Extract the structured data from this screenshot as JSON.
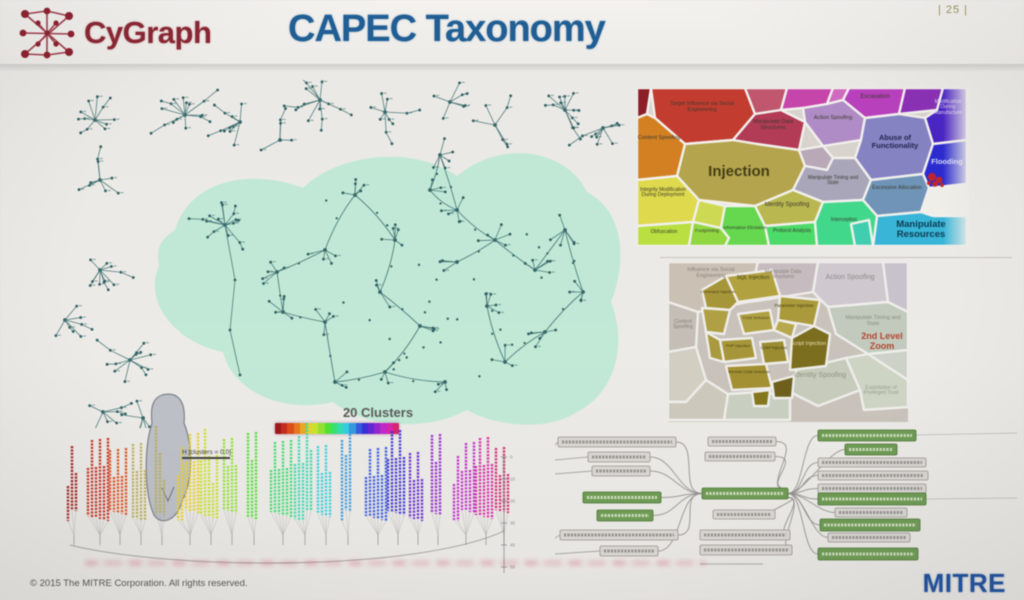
{
  "slide": {
    "page_number": "| 25 |",
    "logo_text": "CyGraph",
    "title": "CAPEC Taxonomy",
    "footer_copyright": "© 2015 The MITRE Corporation. All rights reserved.",
    "brand_logo": "MITRE",
    "colors": {
      "logo_red": "#8c2432",
      "title_blue": "#1e5e96",
      "brand_blue": "#1d4f9e",
      "background": "#eceae6"
    }
  },
  "network_graph": {
    "description": "CAPEC attack pattern relationship graph with highlighted giant component",
    "highlight_color": "#b9e8d2",
    "edge_color": "#3f7172",
    "node_color": "#2f5f61"
  },
  "treemap_level1": {
    "description": "CAPEC taxonomy Voronoi treemap - level 1",
    "cells": [
      {
        "label": "",
        "color": "#8f1d28"
      },
      {
        "label": "Target Influence via Social Engineering",
        "color": "#c63b2f"
      },
      {
        "label": "",
        "color": "#c2566e"
      },
      {
        "label": "Manipulate Data Structures",
        "color": "#b53a56"
      },
      {
        "label": "",
        "color": "#c944ad"
      },
      {
        "label": "",
        "color": "#d169c0"
      },
      {
        "label": "Excavation",
        "color": "#bb3fc0"
      },
      {
        "label": "",
        "color": "#8c2fb8"
      },
      {
        "label": "Modification During Manufacture",
        "color": "#4a23c8"
      },
      {
        "label": "Action Spoofing",
        "color": "#b08cc6"
      },
      {
        "label": "Abuse of Functionality",
        "color": "#8583c4"
      },
      {
        "label": "Flooding",
        "color": "#2b2bd5"
      },
      {
        "label": "Injection",
        "color": "#b5a44b"
      },
      {
        "label": "",
        "color": "#b9a8b8"
      },
      {
        "label": "Manipulate Timing and State",
        "color": "#a9a6bb"
      },
      {
        "label": "Content Spoofing",
        "color": "#d5801f"
      },
      {
        "label": "Integrity Modification During Deployment",
        "color": "#ded949"
      },
      {
        "label": "",
        "color": "#cdd94e"
      },
      {
        "label": "Identity Spoofing",
        "color": "#b9b74d"
      },
      {
        "label": "Excessive Allocation",
        "color": "#6e94b8"
      },
      {
        "label": "",
        "color": "#f0eee9"
      },
      {
        "label": "Manipulate Resources",
        "color": "#35b6d9"
      },
      {
        "label": "Obfuscation",
        "color": "#b8e03c"
      },
      {
        "label": "Footprinting",
        "color": "#8fd83e"
      },
      {
        "label": "Information Elicitation",
        "color": "#62d94c"
      },
      {
        "label": "Protocol Analysis",
        "color": "#49db66"
      },
      {
        "label": "Interception",
        "color": "#3fd98a"
      },
      {
        "label": "",
        "color": "#3ecfb0"
      }
    ]
  },
  "treemap_level2": {
    "description": "CAPEC taxonomy Voronoi treemap - 2nd level zoom on Injection",
    "annotation": "2nd Level Zoom",
    "annotation_color": "#b5472f",
    "cells": [
      {
        "label": "Influence via Social Engineering",
        "color": "#cbc0b4"
      },
      {
        "label": "Manipulate Data Structures",
        "color": "#c6bcc0"
      },
      {
        "label": "Action Spoofing",
        "color": "#cfc8ce"
      },
      {
        "label": "",
        "color": "#c8c2cc"
      },
      {
        "label": "Content Spoofing",
        "color": "#c4beb6"
      },
      {
        "label": "Manipulate Timing and State",
        "color": "#c2cabe"
      },
      {
        "label": "",
        "color": "#ccd2c8"
      },
      {
        "label": "Identity Spoofing",
        "color": "#c6cbbb"
      },
      {
        "label": "Exploitation of Privileged Trust",
        "color": "#cdd4c4"
      },
      {
        "label": "",
        "color": "#d2cec2"
      },
      {
        "label": "",
        "color": "#ccc8bc"
      },
      {
        "label": "",
        "color": "#c9cfc0"
      },
      {
        "label": "SQL Injection",
        "color": "#b3a23c"
      },
      {
        "label": "Command Injection",
        "color": "#a89536"
      },
      {
        "label": "Parameter Injection",
        "color": "#ac9a38"
      },
      {
        "label": "Code Inclusion",
        "color": "#b0a040"
      },
      {
        "label": "",
        "color": "#b8a84a"
      },
      {
        "label": "Script Injection",
        "color": "#7d6e1d"
      },
      {
        "label": "PHP Injection",
        "color": "#a89636"
      },
      {
        "label": "LDAP Injection",
        "color": "#9c8c2e"
      },
      {
        "label": "Remote Code Inclusion",
        "color": "#a39030"
      },
      {
        "label": "",
        "color": "#6e601a"
      },
      {
        "label": "",
        "color": "#857618"
      },
      {
        "label": "",
        "color": "#b0a042"
      },
      {
        "label": "",
        "color": "#aa9a3c"
      }
    ]
  },
  "dendrogram": {
    "title": "20 Clusters",
    "annotation": "H [clusters = 0.0]",
    "palette": [
      "#a01818",
      "#c62b1e",
      "#e04c1a",
      "#e8761c",
      "#e8a81e",
      "#e8d026",
      "#c8e028",
      "#8ee22c",
      "#4ee232",
      "#34e06a",
      "#30dcae",
      "#30cede",
      "#3498e0",
      "#3458e0",
      "#3a30d8",
      "#6428d4",
      "#9426d0",
      "#c228cc",
      "#d828a8",
      "#d82470"
    ],
    "axis_ticks": [
      "0",
      "10",
      "20",
      "30",
      "40",
      "50"
    ]
  },
  "mindmap": {
    "description": "CAPEC attack pattern tree branch view",
    "node_green": "#6d9a52",
    "node_gray": "#d8d5d1",
    "edge_color": "#8f8d8a"
  }
}
